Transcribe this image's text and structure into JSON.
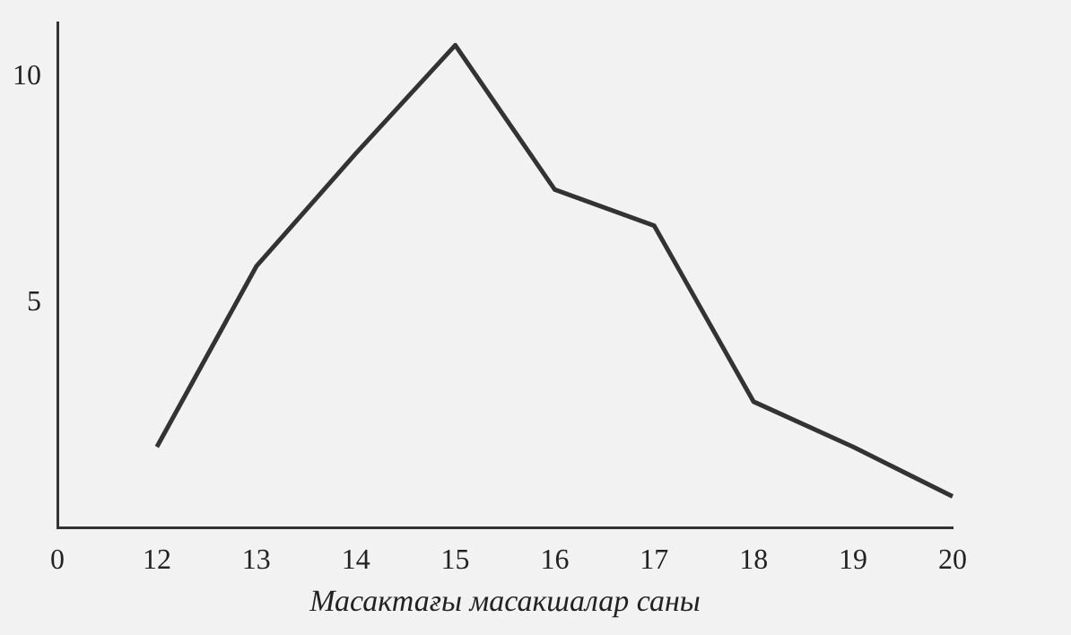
{
  "chart_data": {
    "type": "line",
    "xlabel": "Масактағы масакшалар саны",
    "categories": [
      "0",
      "12",
      "13",
      "14",
      "15",
      "16",
      "17",
      "18",
      "19",
      "20"
    ],
    "values": [
      null,
      1.8,
      5.8,
      8.3,
      10.7,
      7.5,
      6.7,
      2.8,
      1.8,
      0.7
    ],
    "color": "#333333",
    "ylim": [
      0,
      11.2
    ],
    "yticks": [
      5,
      10
    ],
    "grid": false,
    "legend": false,
    "marker": "none",
    "line_style": "solid"
  }
}
